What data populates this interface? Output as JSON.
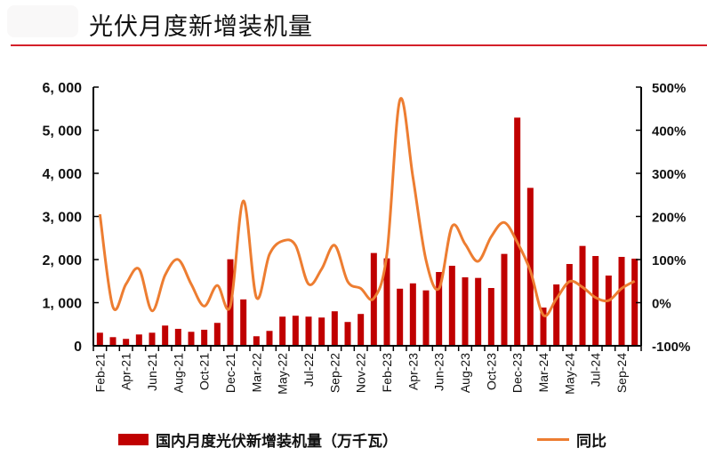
{
  "header": {
    "title": "光伏月度新增装机量"
  },
  "colors": {
    "bar": "#c00000",
    "line": "#ed7d31",
    "rule": "#d4202a"
  },
  "chart_data": {
    "type": "bar+line",
    "title": "光伏月度新增装机量",
    "categories": [
      "Feb-21",
      "Mar-21",
      "Apr-21",
      "May-21",
      "Jun-21",
      "Jul-21",
      "Aug-21",
      "Sep-21",
      "Oct-21",
      "Nov-21",
      "Dec-21",
      "Feb-22",
      "Mar-22",
      "Apr-22",
      "May-22",
      "Jun-22",
      "Jul-22",
      "Aug-22",
      "Sep-22",
      "Oct-22",
      "Nov-22",
      "Dec-22",
      "Feb-23",
      "Mar-23",
      "Apr-23",
      "May-23",
      "Jun-23",
      "Jul-23",
      "Aug-23",
      "Sep-23",
      "Oct-23",
      "Nov-23",
      "Dec-23",
      "Feb-24",
      "Mar-24",
      "Apr-24",
      "May-24",
      "Jun-24",
      "Jul-24",
      "Aug-24",
      "Sep-24",
      "Oct-24"
    ],
    "x_tick_labels": [
      "Feb-21",
      "",
      "Apr-21",
      "",
      "Jun-21",
      "",
      "Aug-21",
      "",
      "Oct-21",
      "",
      "Dec-21",
      "",
      "Mar-22",
      "",
      "May-22",
      "",
      "Jul-22",
      "",
      "Sep-22",
      "",
      "Nov-22",
      "",
      "Feb-23",
      "",
      "Apr-23",
      "",
      "Jun-23",
      "",
      "Aug-23",
      "",
      "Oct-23",
      "",
      "Dec-23",
      "",
      "Mar-24",
      "",
      "May-24",
      "",
      "Jul-24",
      "",
      "Sep-24",
      ""
    ],
    "series": [
      {
        "name": "国内月度光伏新增装机量（万千瓦）",
        "type": "bar",
        "axis": "left",
        "values": [
          303,
          200,
          160,
          262,
          303,
          469,
          393,
          324,
          372,
          531,
          2007,
          1076,
          221,
          345,
          676,
          697,
          676,
          655,
          800,
          552,
          738,
          2152,
          2028,
          1324,
          1448,
          1285,
          1711,
          1856,
          1588,
          1574,
          1340,
          2131,
          5292,
          3663,
          887,
          1423,
          1897,
          2316,
          2082,
          1629,
          2062,
          2021
        ]
      },
      {
        "name": "同比",
        "type": "line",
        "axis": "right",
        "unit": "%",
        "values": [
          205,
          -10,
          43,
          78,
          -19,
          64,
          100,
          43,
          -8,
          40,
          -8,
          236,
          12,
          112,
          143,
          133,
          43,
          78,
          133,
          49,
          33,
          10,
          112,
          470,
          291,
          99,
          33,
          177,
          136,
          96,
          153,
          186,
          140,
          74,
          -29,
          9,
          49,
          36,
          12,
          5,
          33,
          50
        ]
      }
    ],
    "y_left": {
      "min": 0,
      "max": 6000,
      "ticks": [
        0,
        1000,
        2000,
        3000,
        4000,
        5000,
        6000
      ],
      "tick_labels": [
        "0",
        "1, 000",
        "2, 000",
        "3, 000",
        "4, 000",
        "5, 000",
        "6, 000"
      ]
    },
    "y_right": {
      "min": -100,
      "max": 500,
      "ticks": [
        -100,
        0,
        100,
        200,
        300,
        400,
        500
      ],
      "tick_labels": [
        "-100%",
        "0%",
        "100%",
        "200%",
        "300%",
        "400%",
        "500%"
      ]
    },
    "grid": false,
    "legend_position": "bottom"
  },
  "legend": {
    "bar_label": "国内月度光伏新增装机量（万千瓦）",
    "line_label": "同比"
  }
}
